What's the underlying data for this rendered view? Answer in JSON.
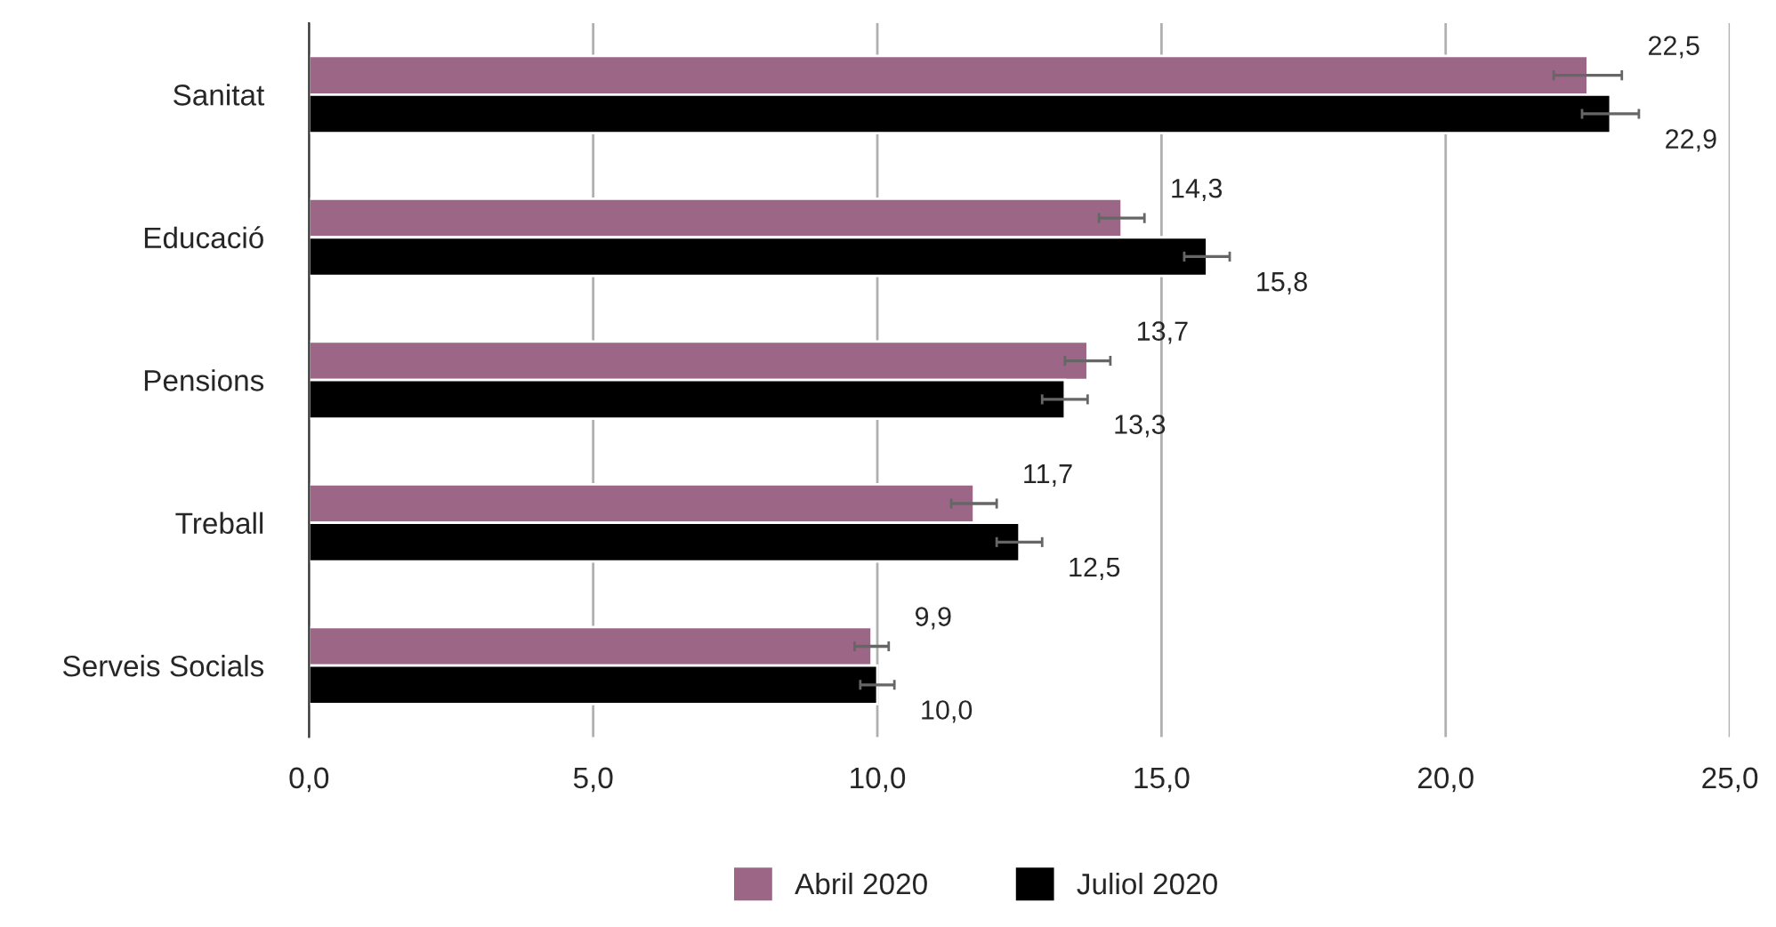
{
  "chart_data": {
    "type": "bar",
    "orientation": "horizontal",
    "categories": [
      "Sanitat",
      "Educació",
      "Pensions",
      "Treball",
      "Serveis Socials"
    ],
    "series": [
      {
        "name": "Abril 2020",
        "color": "#9c6787",
        "values": [
          22.5,
          14.3,
          13.7,
          11.7,
          9.9
        ],
        "errors": [
          0.6,
          0.4,
          0.4,
          0.4,
          0.3
        ],
        "value_labels": [
          "22,5",
          "14,3",
          "13,7",
          "11,7",
          "9,9"
        ]
      },
      {
        "name": "Juliol 2020",
        "color": "#000000",
        "values": [
          22.9,
          15.8,
          13.3,
          12.5,
          10.0
        ],
        "errors": [
          0.5,
          0.4,
          0.4,
          0.4,
          0.3
        ],
        "value_labels": [
          "22,9",
          "15,8",
          "13,3",
          "12,5",
          "10,0"
        ]
      }
    ],
    "xlim": [
      0,
      25
    ],
    "xticks": [
      {
        "value": 0,
        "label": "0,0"
      },
      {
        "value": 5,
        "label": "5,0"
      },
      {
        "value": 10,
        "label": "10,0"
      },
      {
        "value": 15,
        "label": "15,0"
      },
      {
        "value": 20,
        "label": "20,0"
      },
      {
        "value": 25,
        "label": "25,0"
      }
    ],
    "grid": "x",
    "legend": "bottom"
  }
}
